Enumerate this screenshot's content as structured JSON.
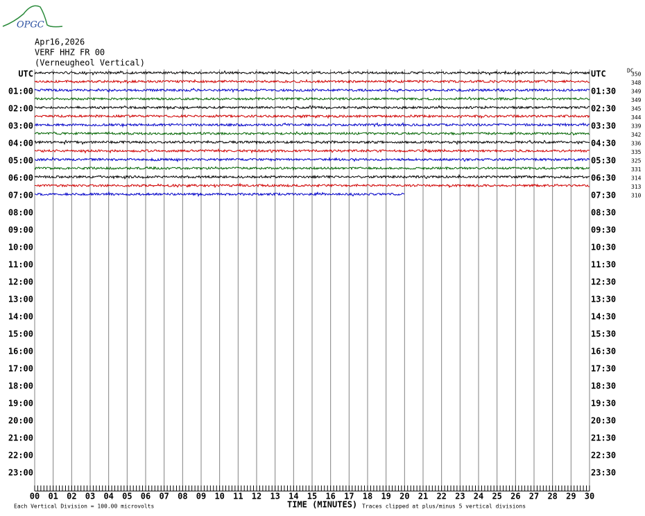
{
  "header": {
    "logo": "OPGC",
    "date": "Apr16,2026",
    "station": "VERF HHZ FR 00",
    "location": "(Verneugheol Vertical)"
  },
  "chart_data": {
    "type": "helicorder",
    "left_labels": [
      "UTC",
      "01:00",
      "02:00",
      "03:00",
      "04:00",
      "05:00",
      "06:00",
      "07:00",
      "08:00",
      "09:00",
      "10:00",
      "11:00",
      "12:00",
      "13:00",
      "14:00",
      "15:00",
      "16:00",
      "17:00",
      "18:00",
      "19:00",
      "20:00",
      "21:00",
      "22:00",
      "23:00"
    ],
    "right_labels": [
      "UTC",
      "01:30",
      "02:30",
      "03:30",
      "04:30",
      "05:30",
      "06:30",
      "07:30",
      "08:30",
      "09:30",
      "10:30",
      "11:30",
      "12:30",
      "13:30",
      "14:30",
      "15:30",
      "16:30",
      "17:30",
      "18:30",
      "19:30",
      "20:30",
      "21:30",
      "22:30",
      "23:30"
    ],
    "xlim": [
      0,
      30
    ],
    "xticks": [
      {
        "value": 0,
        "label": "00"
      },
      {
        "value": 1,
        "label": "01"
      },
      {
        "value": 2,
        "label": "02"
      },
      {
        "value": 3,
        "label": "03"
      },
      {
        "value": 4,
        "label": "04"
      },
      {
        "value": 5,
        "label": "05"
      },
      {
        "value": 6,
        "label": "06"
      },
      {
        "value": 7,
        "label": "07"
      },
      {
        "value": 8,
        "label": "08"
      },
      {
        "value": 9,
        "label": "09"
      },
      10,
      11,
      12,
      13,
      14,
      15,
      16,
      17,
      18,
      19,
      20,
      21,
      22,
      23,
      24,
      25,
      26,
      27,
      28,
      29,
      30
    ],
    "x_label": "TIME (MINUTES)",
    "trace_colors": [
      "#000000",
      "#d00000",
      "#0000c8",
      "#006400",
      "#000000",
      "#d00000",
      "#0000c8",
      "#006400",
      "#000000",
      "#d00000",
      "#0000c8",
      "#006400",
      "#000000",
      "#d00000",
      "#0000c8"
    ],
    "trace_ends": [
      30,
      30,
      30,
      30,
      30,
      30,
      30,
      30,
      30,
      30,
      30,
      30,
      30,
      30,
      20
    ],
    "dc_label": "DC",
    "dc_values": [
      350,
      348,
      349,
      349,
      345,
      344,
      339,
      342,
      336,
      335,
      325,
      331,
      314,
      313,
      310
    ],
    "scale_note": "Each Vertical Division =  100.00 microvolts",
    "clip_note": "Traces clipped at plus/minus 5 vertical divisions"
  }
}
